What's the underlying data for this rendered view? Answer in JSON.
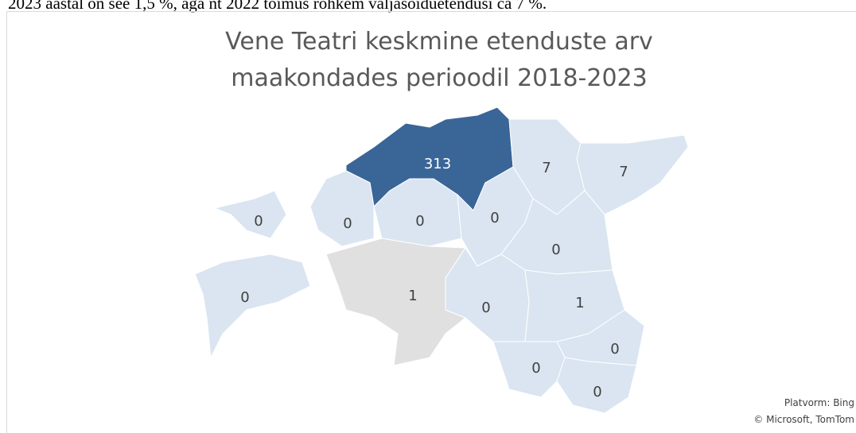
{
  "caption": "2023 aastal on see 1,5 %, aga nt 2022 toimus rohkem väljasõiduetendusi ca 7 %.",
  "chart_data": {
    "type": "map",
    "title": [
      "Vene Teatri keskmine etenduste arv",
      "maakondades perioodil 2018-2023"
    ],
    "regions": [
      {
        "value": 313,
        "color": "#3a6597"
      },
      {
        "value": 7,
        "color": "#dae5f1"
      },
      {
        "value": 7,
        "color": "#dae5f1"
      },
      {
        "value": 0,
        "color": "#dae5f1"
      },
      {
        "value": 0,
        "color": "#dae5f1"
      },
      {
        "value": 0,
        "color": "#dae5f1"
      },
      {
        "value": 0,
        "color": "#dae5f1"
      },
      {
        "value": 0,
        "color": "#dae5f1"
      },
      {
        "value": 0,
        "color": "#dae5f1"
      },
      {
        "value": 1,
        "color": "#e0e0e0"
      },
      {
        "value": 0,
        "color": "#dae5f1"
      },
      {
        "value": 1,
        "color": "#dae5f1"
      },
      {
        "value": 0,
        "color": "#dae5f1"
      },
      {
        "value": 0,
        "color": "#dae5f1"
      },
      {
        "value": 0,
        "color": "#dae5f1"
      }
    ],
    "attribution": [
      "Platvorm: Bing",
      "© Microsoft, TomTom"
    ]
  }
}
